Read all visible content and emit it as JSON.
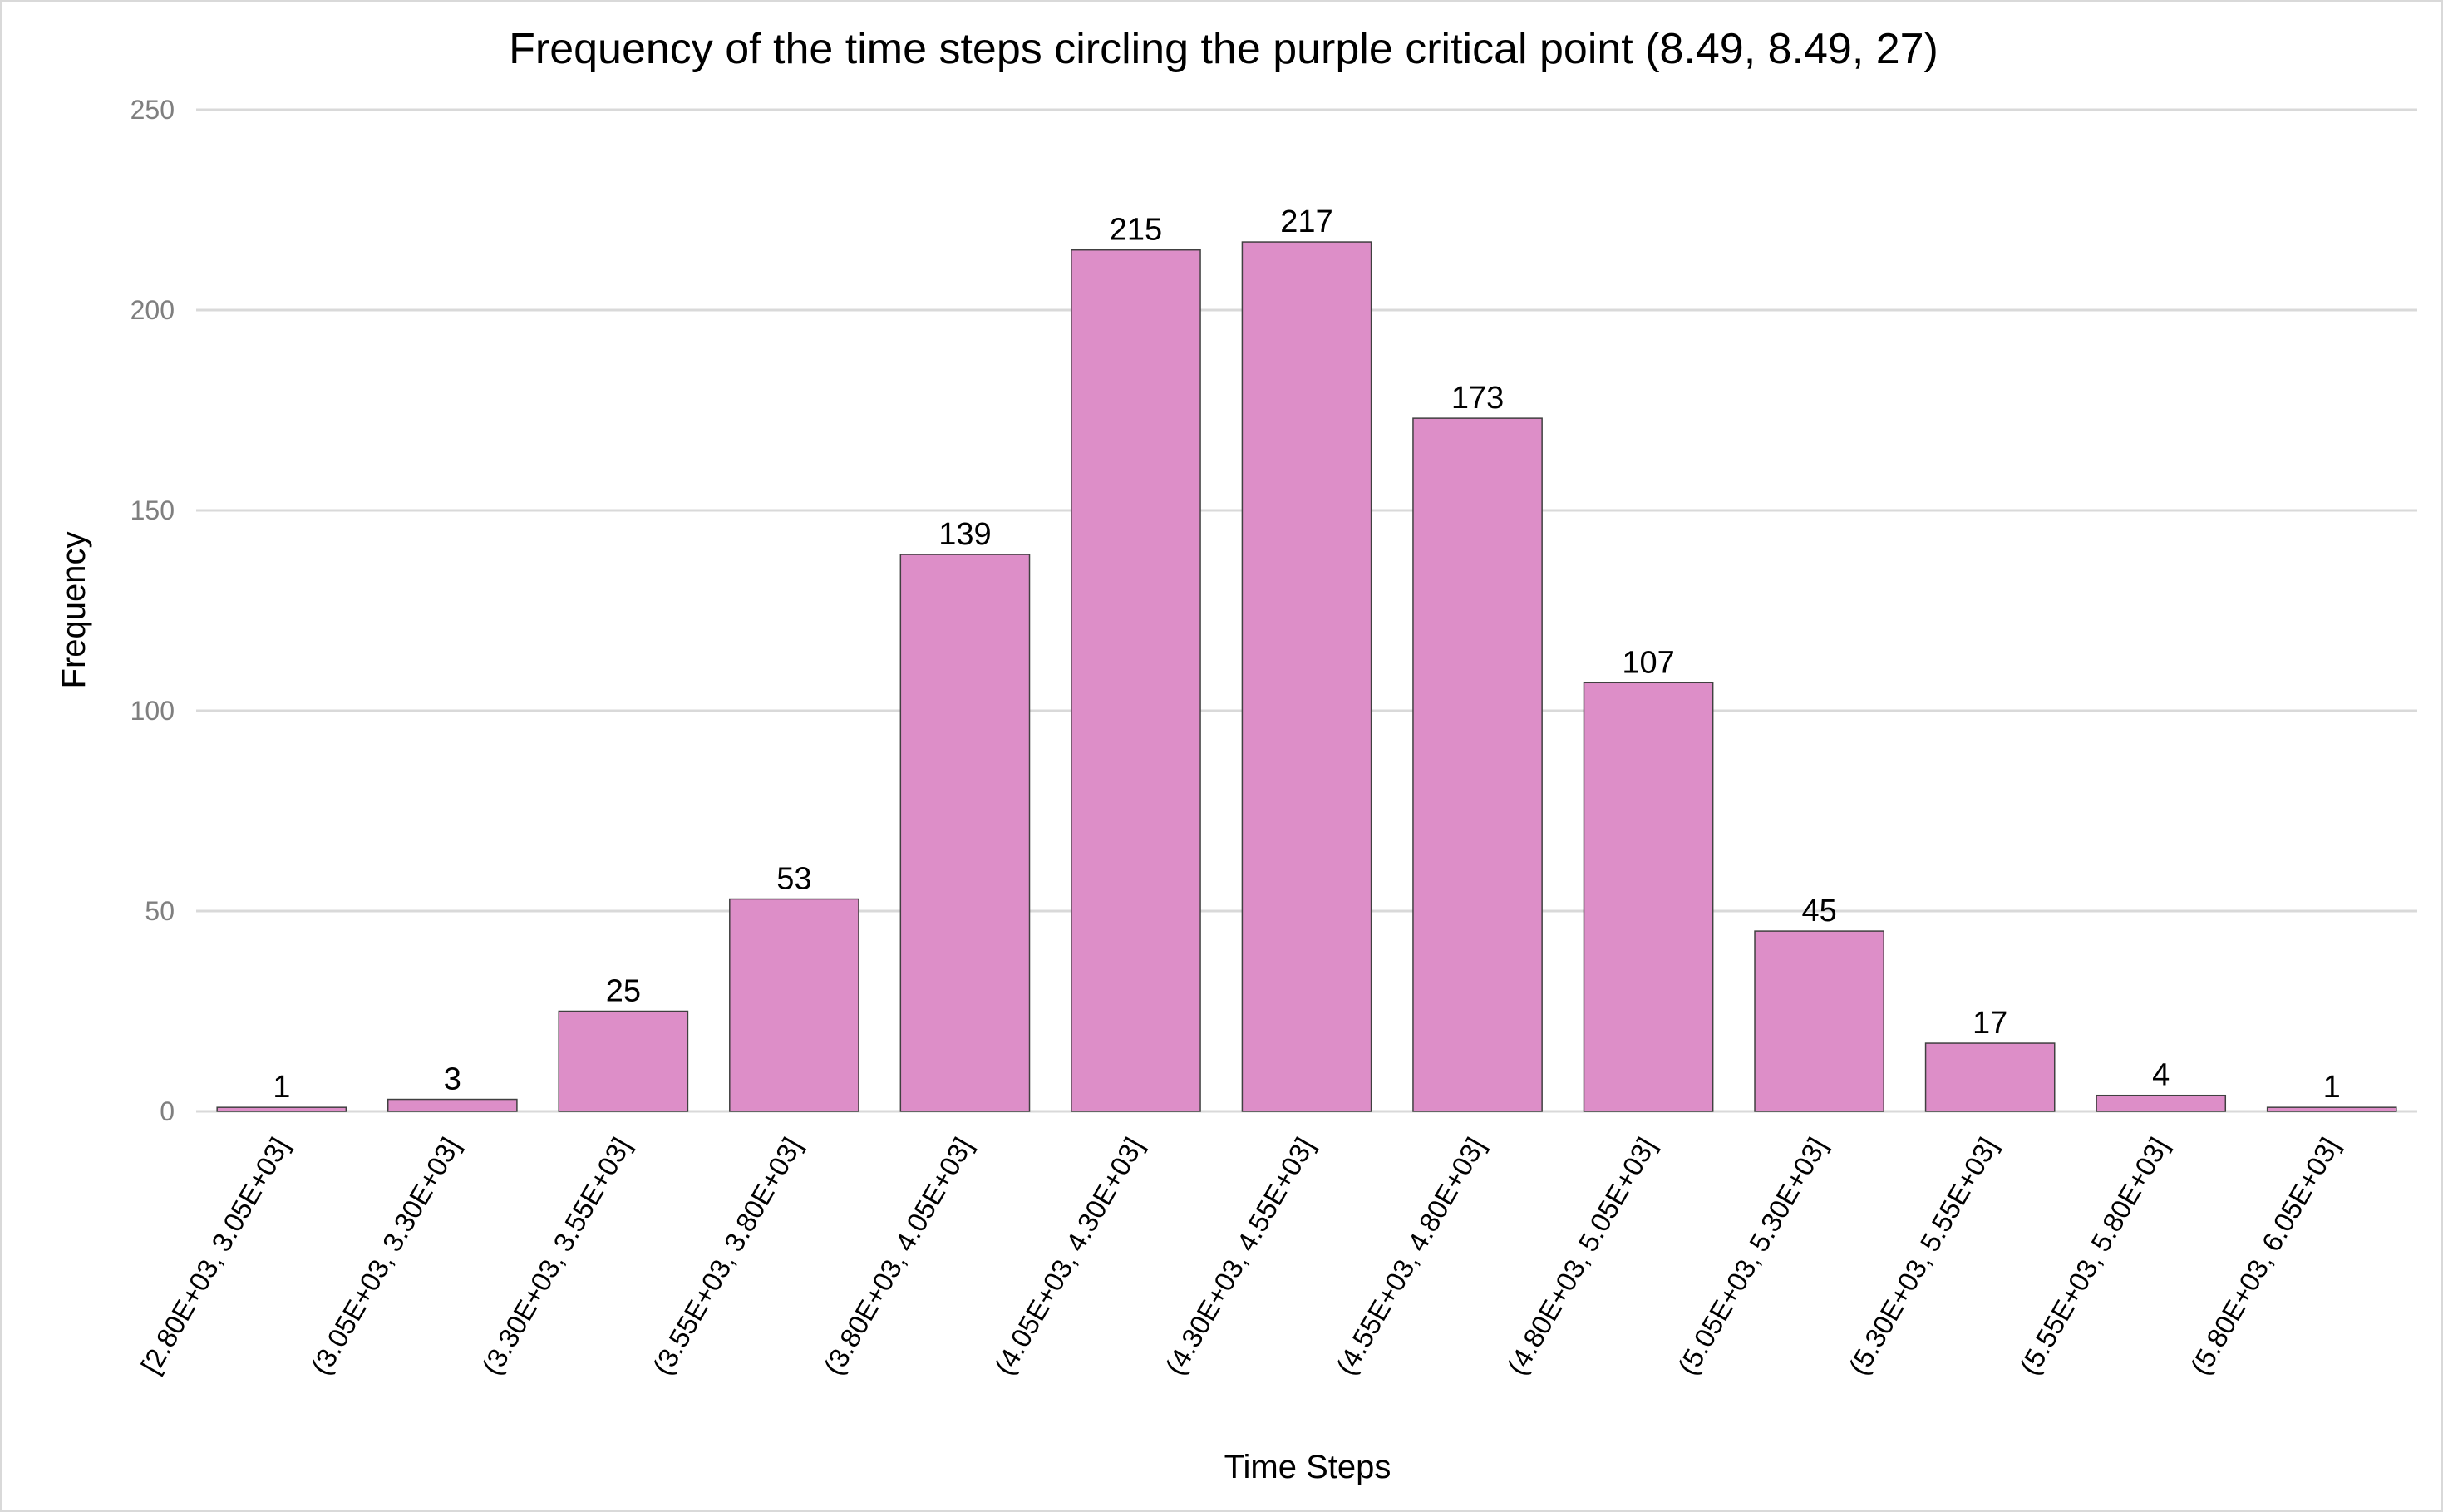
{
  "chart_data": {
    "type": "bar",
    "title": "Frequency of the time steps circling the purple critical point (8.49, 8.49, 27)",
    "xlabel": "Time Steps",
    "ylabel": "Frequency",
    "ylim": [
      0,
      250
    ],
    "yticks": [
      0,
      50,
      100,
      150,
      200,
      250
    ],
    "grid": true,
    "legend": "none",
    "bar_color": "#dd8ec8",
    "categories": [
      "[2.80E+03, 3.05E+03]",
      "(3.05E+03, 3.30E+03]",
      "(3.30E+03, 3.55E+03]",
      "(3.55E+03, 3.80E+03]",
      "(3.80E+03, 4.05E+03]",
      "(4.05E+03, 4.30E+03]",
      "(4.30E+03, 4.55E+03]",
      "(4.55E+03, 4.80E+03]",
      "(4.80E+03, 5.05E+03]",
      "(5.05E+03, 5.30E+03]",
      "(5.30E+03, 5.55E+03]",
      "(5.55E+03, 5.80E+03]",
      "(5.80E+03, 6.05E+03]"
    ],
    "values": [
      1,
      3,
      25,
      53,
      139,
      215,
      217,
      173,
      107,
      45,
      17,
      4,
      1
    ]
  }
}
